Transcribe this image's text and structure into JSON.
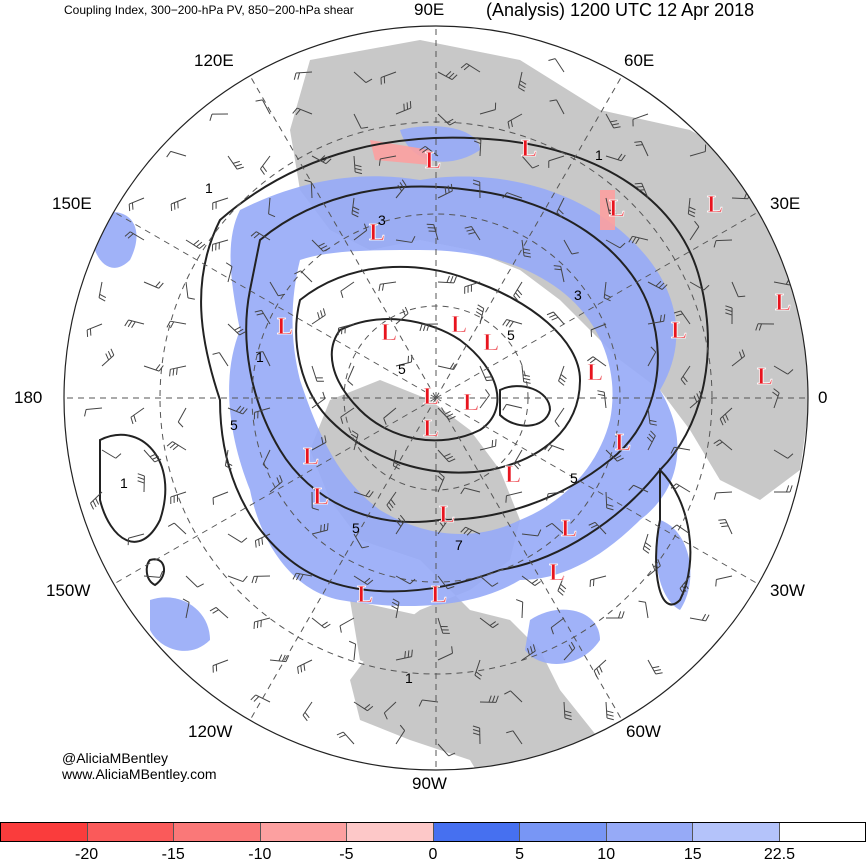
{
  "header": {
    "title_left": "Coupling Index, 300−200-hPa PV, 850−200-hPa shear",
    "title_right": "(Analysis) 1200 UTC 12 Apr 2018"
  },
  "map": {
    "projection": "north-polar-stereographic",
    "longitude_labels": [
      "90E",
      "60E",
      "30E",
      "0",
      "30W",
      "60W",
      "90W",
      "120W",
      "150W",
      "180",
      "150E",
      "120E"
    ],
    "contour_labels": [
      "1",
      "3",
      "5",
      "7"
    ],
    "low_marker": "L",
    "low_count": 28,
    "colors": {
      "land": "#c8c8c8",
      "ocean": "#ffffff",
      "contour": "#222222",
      "low_marker": "#e8141e"
    }
  },
  "credits": {
    "handle": "@AliciaMBentley",
    "website": "www.AliciaMBentley.com"
  },
  "colorbar": {
    "colors": [
      "#fa3c3c",
      "#fa5a5a",
      "#fa7878",
      "#fca0a0",
      "#fdc8c8",
      "#4670f0",
      "#7896f5",
      "#96aaf7",
      "#b4c3fa",
      "#ffffff"
    ],
    "tick_labels": [
      "-20",
      "-15",
      "-10",
      "-5",
      "0",
      "5",
      "10",
      "15",
      "22.5"
    ]
  }
}
